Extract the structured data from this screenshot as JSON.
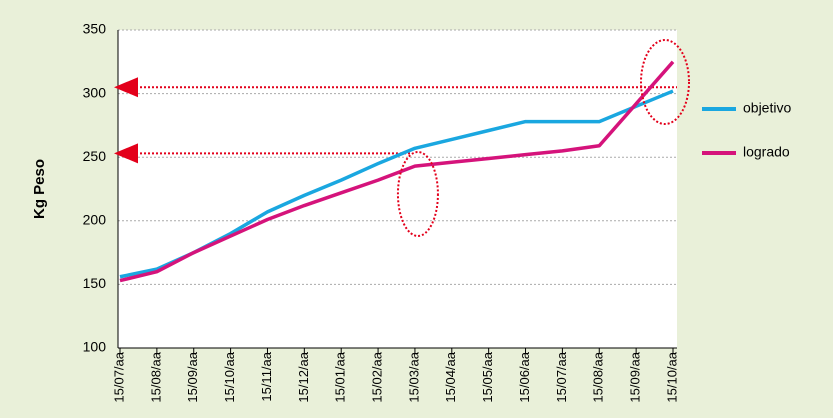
{
  "chart_data": {
    "type": "line",
    "y_label": "Kg Peso",
    "categories": [
      "15/07/aa",
      "15/08/aa",
      "15/09/aa",
      "15/10/aa",
      "15/11/aa",
      "15/12/aa",
      "15/01/aa",
      "15/02/aa",
      "15/03/aa",
      "15/04/aa",
      "15/05/aa",
      "15/06/aa",
      "15/07/aa",
      "15/08/aa",
      "15/09/aa",
      "15/10/aa"
    ],
    "series": [
      {
        "name": "objetivo",
        "color": "#1aa7e0",
        "values": [
          156,
          162,
          175,
          190,
          207,
          220,
          232,
          245,
          257,
          264,
          271,
          278,
          278,
          278,
          290,
          302
        ]
      },
      {
        "name": "logrado",
        "color": "#d5137b",
        "values": [
          153,
          160,
          175,
          188,
          201,
          212,
          222,
          232,
          243,
          246,
          249,
          252,
          255,
          259,
          292,
          325
        ]
      }
    ],
    "ylim": [
      100,
      350
    ],
    "yticks": [
      100,
      150,
      200,
      250,
      300,
      350
    ],
    "grid": true,
    "highlight_levels": [
      305,
      253
    ],
    "highlight_color": "#e3001b"
  }
}
